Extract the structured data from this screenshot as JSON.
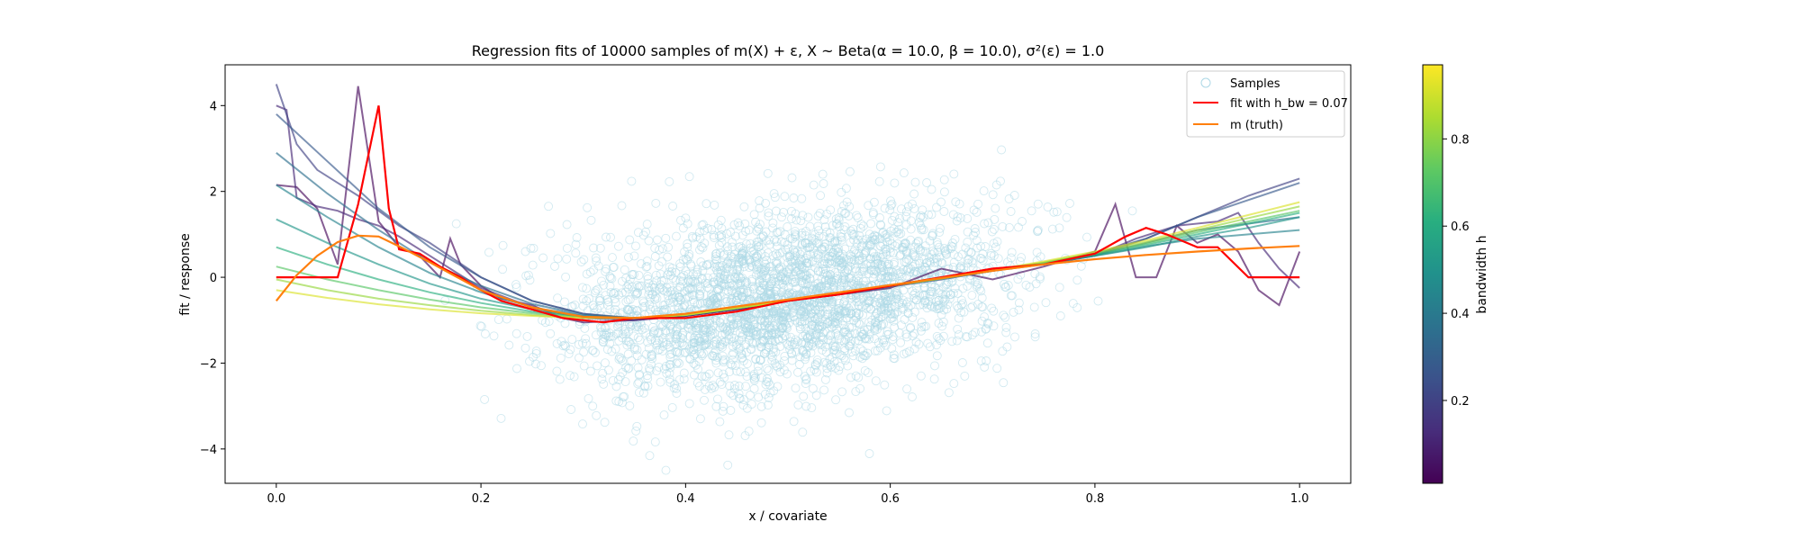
{
  "chart_data": {
    "type": "line",
    "title": "Regression fits of 10000 samples of m(X) + ε, X ~ Beta(α = 10.0, β = 10.0), σ²(ε) = 1.0",
    "xlabel": "x / covariate",
    "ylabel": "fit / response",
    "xlim": [
      -0.05,
      1.05
    ],
    "ylim": [
      -4.8,
      4.95
    ],
    "xticks": [
      0.0,
      0.2,
      0.4,
      0.6,
      0.8,
      1.0
    ],
    "xtick_labels": [
      "0.0",
      "0.2",
      "0.4",
      "0.6",
      "0.8",
      "1.0"
    ],
    "yticks": [
      -4,
      -2,
      0,
      2,
      4
    ],
    "ytick_labels": [
      "−4",
      "−2",
      "0",
      "2",
      "4"
    ],
    "grid": false,
    "legend_position": "top-right",
    "legend": [
      "Samples",
      "fit with h_bw = 0.07",
      "m (truth)"
    ],
    "samples": {
      "count": 10000,
      "x_distribution": "Beta(10, 10)",
      "noise_variance": 1.0,
      "color": "#add8e6",
      "marker": "hollow-circle"
    },
    "truth": {
      "color": "#ff7f0e",
      "x": [
        0.0,
        0.02,
        0.04,
        0.06,
        0.08,
        0.1,
        0.12,
        0.15,
        0.2,
        0.25,
        0.3,
        0.35,
        0.4,
        0.45,
        0.5,
        0.55,
        0.6,
        0.65,
        0.7,
        0.75,
        0.8,
        0.85,
        0.9,
        0.95,
        1.0
      ],
      "y": [
        -0.55,
        0.05,
        0.5,
        0.82,
        0.97,
        0.95,
        0.72,
        0.35,
        -0.3,
        -0.7,
        -0.92,
        -0.95,
        -0.85,
        -0.68,
        -0.52,
        -0.35,
        -0.18,
        -0.02,
        0.15,
        0.3,
        0.42,
        0.52,
        0.6,
        0.67,
        0.73
      ]
    },
    "highlight_fit": {
      "name": "fit with h_bw = 0.07",
      "bandwidth": 0.07,
      "color": "#ff0000",
      "x": [
        0.0,
        0.02,
        0.04,
        0.06,
        0.08,
        0.1,
        0.11,
        0.12,
        0.14,
        0.16,
        0.18,
        0.2,
        0.22,
        0.25,
        0.28,
        0.3,
        0.32,
        0.35,
        0.4,
        0.45,
        0.5,
        0.55,
        0.6,
        0.65,
        0.7,
        0.75,
        0.8,
        0.83,
        0.85,
        0.87,
        0.9,
        0.92,
        0.95,
        0.97,
        1.0
      ],
      "y": [
        0.0,
        0.0,
        0.0,
        0.0,
        1.7,
        4.0,
        1.6,
        0.65,
        0.55,
        0.25,
        0.0,
        -0.3,
        -0.55,
        -0.75,
        -0.95,
        -1.0,
        -1.05,
        -0.95,
        -0.95,
        -0.8,
        -0.55,
        -0.4,
        -0.2,
        0.0,
        0.2,
        0.3,
        0.55,
        0.95,
        1.15,
        1.0,
        0.7,
        0.7,
        0.0,
        0.0,
        0.0
      ]
    },
    "colorbar": {
      "label": "bandwidth h",
      "colormap": "viridis",
      "range": [
        0.01,
        0.97
      ],
      "ticks": [
        0.2,
        0.4,
        0.6,
        0.8
      ],
      "tick_labels": [
        "0.2",
        "0.4",
        "0.6",
        "0.8"
      ]
    },
    "bandwidth_fits": [
      {
        "bandwidth": 0.03,
        "x": [
          0.0,
          0.02,
          0.04,
          0.06,
          0.08,
          0.1,
          0.12,
          0.14,
          0.16,
          0.17,
          0.18,
          0.2,
          0.22,
          0.25,
          0.28,
          0.3,
          0.35,
          0.4,
          0.45,
          0.5,
          0.55,
          0.6,
          0.65,
          0.7,
          0.75,
          0.8,
          0.82,
          0.84,
          0.86,
          0.88,
          0.9,
          0.92,
          0.94,
          0.96,
          0.98,
          1.0
        ],
        "y": [
          2.15,
          2.1,
          1.6,
          0.3,
          4.45,
          1.3,
          0.7,
          0.5,
          0.0,
          0.9,
          0.3,
          -0.2,
          -0.5,
          -0.65,
          -0.95,
          -1.05,
          -1.0,
          -0.9,
          -0.75,
          -0.55,
          -0.4,
          -0.25,
          0.2,
          -0.05,
          0.25,
          0.6,
          1.7,
          0.0,
          0.0,
          1.2,
          0.8,
          1.0,
          0.6,
          -0.3,
          -0.65,
          0.6
        ]
      },
      {
        "bandwidth": 0.12,
        "x": [
          0.0,
          0.01,
          0.02,
          0.04,
          0.06,
          0.08,
          0.1,
          0.12,
          0.15,
          0.2,
          0.25,
          0.3,
          0.35,
          0.4,
          0.45,
          0.5,
          0.55,
          0.6,
          0.65,
          0.7,
          0.75,
          0.8,
          0.84,
          0.88,
          0.92,
          0.94,
          0.96,
          0.98,
          1.0
        ],
        "y": [
          4.0,
          3.9,
          1.85,
          1.65,
          1.55,
          1.35,
          1.2,
          0.95,
          0.5,
          -0.25,
          -0.7,
          -0.95,
          -1.0,
          -0.9,
          -0.75,
          -0.55,
          -0.4,
          -0.2,
          0.0,
          0.2,
          0.3,
          0.5,
          0.9,
          1.2,
          1.3,
          1.5,
          0.8,
          0.2,
          -0.25
        ]
      },
      {
        "bandwidth": 0.2,
        "x": [
          0.0,
          0.02,
          0.04,
          0.06,
          0.08,
          0.1,
          0.12,
          0.15,
          0.2,
          0.25,
          0.3,
          0.35,
          0.4,
          0.45,
          0.5,
          0.55,
          0.6,
          0.65,
          0.7,
          0.75,
          0.8,
          0.85,
          0.9,
          0.95,
          1.0
        ],
        "y": [
          4.5,
          3.1,
          2.5,
          2.2,
          1.9,
          1.55,
          1.2,
          0.8,
          0.0,
          -0.55,
          -0.85,
          -0.97,
          -0.9,
          -0.75,
          -0.55,
          -0.4,
          -0.22,
          -0.05,
          0.15,
          0.3,
          0.5,
          0.9,
          1.4,
          1.9,
          2.3
        ]
      },
      {
        "bandwidth": 0.28,
        "x": [
          0.0,
          0.05,
          0.1,
          0.15,
          0.2,
          0.25,
          0.3,
          0.35,
          0.4,
          0.45,
          0.5,
          0.55,
          0.6,
          0.65,
          0.7,
          0.75,
          0.8,
          0.85,
          0.9,
          0.95,
          1.0
        ],
        "y": [
          3.8,
          2.7,
          1.6,
          0.7,
          0.0,
          -0.55,
          -0.85,
          -0.95,
          -0.88,
          -0.72,
          -0.55,
          -0.38,
          -0.2,
          -0.03,
          0.15,
          0.33,
          0.55,
          0.9,
          1.4,
          1.8,
          2.2
        ]
      },
      {
        "bandwidth": 0.36,
        "x": [
          0.0,
          0.05,
          0.1,
          0.15,
          0.2,
          0.25,
          0.3,
          0.35,
          0.4,
          0.45,
          0.5,
          0.55,
          0.6,
          0.65,
          0.7,
          0.75,
          0.8,
          0.85,
          0.9,
          0.95,
          1.0
        ],
        "y": [
          2.9,
          1.95,
          1.1,
          0.35,
          -0.2,
          -0.62,
          -0.88,
          -0.95,
          -0.88,
          -0.72,
          -0.55,
          -0.38,
          -0.2,
          -0.03,
          0.15,
          0.32,
          0.52,
          0.8,
          1.1,
          1.25,
          1.4
        ]
      },
      {
        "bandwidth": 0.44,
        "x": [
          0.0,
          0.05,
          0.1,
          0.15,
          0.2,
          0.25,
          0.3,
          0.35,
          0.4,
          0.45,
          0.5,
          0.55,
          0.6,
          0.65,
          0.7,
          0.75,
          0.8,
          0.85,
          0.9,
          0.95,
          1.0
        ],
        "y": [
          2.15,
          1.4,
          0.7,
          0.1,
          -0.35,
          -0.7,
          -0.9,
          -0.95,
          -0.88,
          -0.72,
          -0.55,
          -0.38,
          -0.2,
          -0.03,
          0.15,
          0.32,
          0.5,
          0.72,
          0.9,
          1.0,
          1.1
        ]
      },
      {
        "bandwidth": 0.52,
        "x": [
          0.0,
          0.05,
          0.1,
          0.15,
          0.2,
          0.25,
          0.3,
          0.35,
          0.4,
          0.45,
          0.5,
          0.55,
          0.6,
          0.65,
          0.7,
          0.75,
          0.8,
          0.85,
          0.9,
          0.95,
          1.0
        ],
        "y": [
          1.35,
          0.8,
          0.3,
          -0.15,
          -0.5,
          -0.75,
          -0.92,
          -0.95,
          -0.88,
          -0.72,
          -0.55,
          -0.38,
          -0.2,
          -0.03,
          0.15,
          0.32,
          0.5,
          0.7,
          0.95,
          1.15,
          1.4
        ]
      },
      {
        "bandwidth": 0.62,
        "x": [
          0.0,
          0.05,
          0.1,
          0.15,
          0.2,
          0.25,
          0.3,
          0.35,
          0.4,
          0.45,
          0.5,
          0.55,
          0.6,
          0.65,
          0.7,
          0.75,
          0.8,
          0.85,
          0.9,
          0.95,
          1.0
        ],
        "y": [
          0.7,
          0.3,
          -0.05,
          -0.35,
          -0.6,
          -0.8,
          -0.92,
          -0.95,
          -0.88,
          -0.72,
          -0.55,
          -0.38,
          -0.2,
          -0.03,
          0.15,
          0.33,
          0.52,
          0.75,
          1.0,
          1.25,
          1.5
        ]
      },
      {
        "bandwidth": 0.72,
        "x": [
          0.0,
          0.05,
          0.1,
          0.15,
          0.2,
          0.25,
          0.3,
          0.35,
          0.4,
          0.45,
          0.5,
          0.55,
          0.6,
          0.65,
          0.7,
          0.75,
          0.8,
          0.85,
          0.9,
          0.95,
          1.0
        ],
        "y": [
          0.25,
          -0.05,
          -0.3,
          -0.52,
          -0.7,
          -0.84,
          -0.93,
          -0.95,
          -0.88,
          -0.72,
          -0.55,
          -0.38,
          -0.2,
          -0.03,
          0.15,
          0.34,
          0.55,
          0.78,
          1.05,
          1.3,
          1.55
        ]
      },
      {
        "bandwidth": 0.82,
        "x": [
          0.0,
          0.05,
          0.1,
          0.15,
          0.2,
          0.25,
          0.3,
          0.35,
          0.4,
          0.45,
          0.5,
          0.55,
          0.6,
          0.65,
          0.7,
          0.75,
          0.8,
          0.85,
          0.9,
          0.95,
          1.0
        ],
        "y": [
          -0.05,
          -0.3,
          -0.5,
          -0.65,
          -0.78,
          -0.88,
          -0.94,
          -0.95,
          -0.88,
          -0.72,
          -0.55,
          -0.38,
          -0.2,
          -0.03,
          0.16,
          0.35,
          0.57,
          0.82,
          1.1,
          1.38,
          1.65
        ]
      },
      {
        "bandwidth": 0.92,
        "x": [
          0.0,
          0.05,
          0.1,
          0.15,
          0.2,
          0.25,
          0.3,
          0.35,
          0.4,
          0.45,
          0.5,
          0.55,
          0.6,
          0.65,
          0.7,
          0.75,
          0.8,
          0.85,
          0.9,
          0.95,
          1.0
        ],
        "y": [
          -0.3,
          -0.48,
          -0.63,
          -0.75,
          -0.84,
          -0.9,
          -0.95,
          -0.95,
          -0.88,
          -0.72,
          -0.55,
          -0.38,
          -0.2,
          -0.02,
          0.17,
          0.37,
          0.6,
          0.86,
          1.15,
          1.45,
          1.75
        ]
      }
    ]
  }
}
